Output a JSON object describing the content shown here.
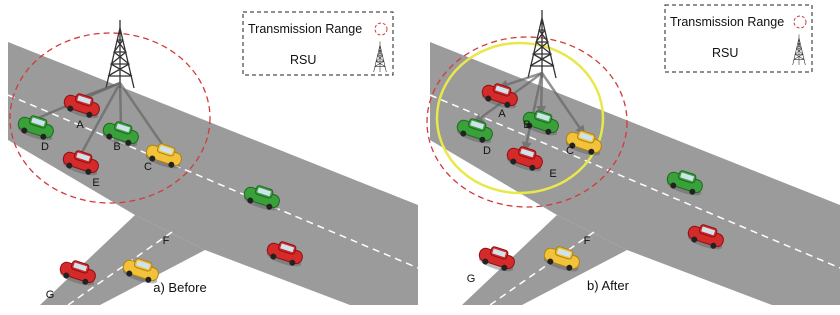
{
  "panels": [
    {
      "caption": "a) Before",
      "legend": {
        "range": "Transmission Range",
        "rsu": "RSU"
      },
      "cars": [
        "A",
        "B",
        "C",
        "D",
        "E",
        "F",
        "G"
      ]
    },
    {
      "caption": "b) After",
      "legend": {
        "range": "Transmission Range",
        "rsu": "RSU"
      },
      "cars": [
        "A",
        "B",
        "C",
        "D",
        "E",
        "F",
        "G"
      ]
    }
  ]
}
